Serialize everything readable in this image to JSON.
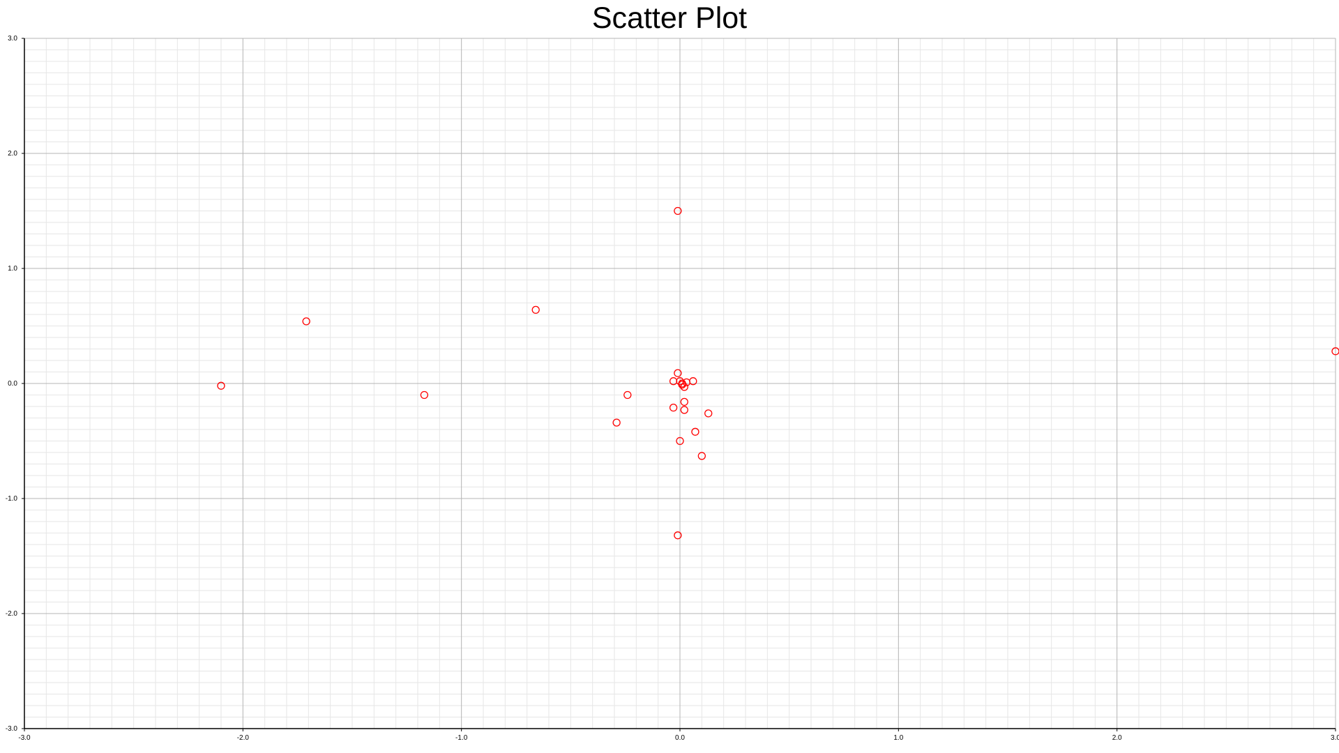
{
  "chart_data": {
    "type": "scatter",
    "title": "Scatter Plot",
    "xlabel": "",
    "ylabel": "",
    "xlim": [
      -3.0,
      3.0
    ],
    "ylim": [
      -3.0,
      3.0
    ],
    "x_ticks": [
      "-3.0",
      "-2.0",
      "-1.0",
      "0.0",
      "1.0",
      "2.0",
      "3.0"
    ],
    "y_ticks": [
      "3.0",
      "2.0",
      "1.0",
      "0.0",
      "-1.0",
      "-2.0",
      "-3.0"
    ],
    "grid": true,
    "marker": "hollow-circle",
    "marker_color": "#ff0000",
    "series": [
      {
        "points": [
          {
            "x": -2.1,
            "y": -0.02
          },
          {
            "x": -1.71,
            "y": 0.54
          },
          {
            "x": -1.17,
            "y": -0.1
          },
          {
            "x": -0.66,
            "y": 0.64
          },
          {
            "x": -0.29,
            "y": -0.34
          },
          {
            "x": -0.24,
            "y": -0.1
          },
          {
            "x": -0.03,
            "y": -0.21
          },
          {
            "x": -0.03,
            "y": 0.02
          },
          {
            "x": -0.01,
            "y": 1.5
          },
          {
            "x": -0.01,
            "y": 0.09
          },
          {
            "x": -0.01,
            "y": -1.32
          },
          {
            "x": 0.0,
            "y": 0.02
          },
          {
            "x": 0.0,
            "y": -0.5
          },
          {
            "x": 0.01,
            "y": 0.0
          },
          {
            "x": 0.01,
            "y": -0.01
          },
          {
            "x": 0.02,
            "y": -0.16
          },
          {
            "x": 0.02,
            "y": -0.23
          },
          {
            "x": 0.02,
            "y": -0.03
          },
          {
            "x": 0.03,
            "y": 0.01
          },
          {
            "x": 0.06,
            "y": 0.02
          },
          {
            "x": 0.07,
            "y": -0.42
          },
          {
            "x": 0.1,
            "y": -0.63
          },
          {
            "x": 0.13,
            "y": -0.26
          },
          {
            "x": 3.0,
            "y": 0.28
          }
        ]
      }
    ]
  }
}
